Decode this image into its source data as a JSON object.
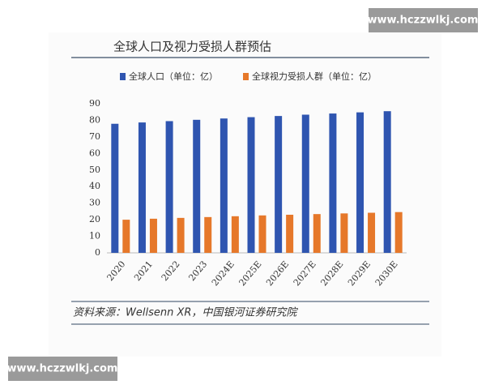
{
  "chart_data": {
    "type": "bar",
    "title": "全球人口及视力受损人群预估",
    "categories": [
      "2020",
      "2021",
      "2022",
      "2023",
      "2024E",
      "2025E",
      "2026E",
      "2027E",
      "2028E",
      "2029E",
      "2030E"
    ],
    "series": [
      {
        "name": "全球人口（单位：亿）",
        "color": "#2f55b0",
        "values": [
          77.9,
          78.7,
          79.5,
          80.3,
          81.1,
          81.9,
          82.6,
          83.4,
          84.1,
          84.8,
          85.5
        ]
      },
      {
        "name": "全球视力受损人群（单位：亿）",
        "color": "#e6782a",
        "values": [
          20.0,
          20.6,
          21.1,
          21.6,
          22.1,
          22.6,
          23.0,
          23.4,
          23.8,
          24.2,
          24.6
        ]
      }
    ],
    "ylim": [
      0,
      90
    ],
    "yticks": [
      0,
      10,
      20,
      30,
      40,
      50,
      60,
      70,
      80,
      90
    ],
    "grid": false
  },
  "source": "资料来源：Wellsenn XR，中国银河证券研究院",
  "watermarks": [
    "www.hczzwlkj.com",
    "www.hczzwlkj.com"
  ]
}
